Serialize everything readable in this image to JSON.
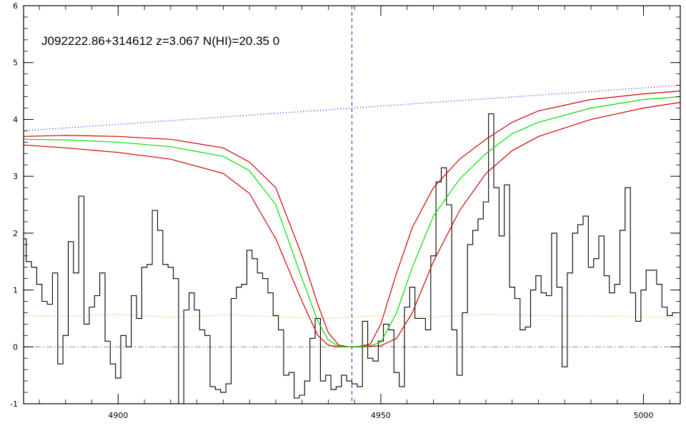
{
  "chart_data": {
    "type": "line",
    "title": "J092222.86+314612 z=3.067 N(HI)=20.35 0",
    "xlabel": "",
    "ylabel": "",
    "xlim": [
      4882,
      5007
    ],
    "ylim": [
      -1,
      6
    ],
    "x_ticks": [
      4900,
      4950,
      5000
    ],
    "y_ticks": [
      -1,
      0,
      1,
      2,
      3,
      4,
      5,
      6
    ],
    "grid": false,
    "legend": "none",
    "vertical_marker_x": 4944.5,
    "zero_level": 0,
    "colors": {
      "flux": "#000000",
      "model": "#00dd00",
      "model_bounds": "#cc0000",
      "continuum": "#3333ff",
      "error": "#ff8800",
      "marker": "#2222aa",
      "zero_line": "#888888"
    },
    "series": [
      {
        "kind": "flux_histogram",
        "x": [
          4882,
          4883,
          4884,
          4885,
          4886,
          4887,
          4888,
          4889,
          4890,
          4891,
          4892,
          4893,
          4894,
          4895,
          4896,
          4897,
          4898,
          4899,
          4900,
          4901,
          4902,
          4903,
          4904,
          4905,
          4906,
          4907,
          4908,
          4909,
          4910,
          4911,
          4912,
          4913,
          4914,
          4915,
          4916,
          4917,
          4918,
          4919,
          4920,
          4921,
          4922,
          4923,
          4924,
          4925,
          4926,
          4927,
          4928,
          4929,
          4930,
          4931,
          4932,
          4933,
          4934,
          4935,
          4936,
          4937,
          4938,
          4939,
          4940,
          4941,
          4942,
          4943,
          4944,
          4945,
          4946,
          4947,
          4948,
          4949,
          4950,
          4951,
          4952,
          4953,
          4954,
          4955,
          4956,
          4957,
          4958,
          4959,
          4960,
          4961,
          4962,
          4963,
          4964,
          4965,
          4966,
          4967,
          4968,
          4969,
          4970,
          4971,
          4972,
          4973,
          4974,
          4975,
          4976,
          4977,
          4978,
          4979,
          4980,
          4981,
          4982,
          4983,
          4984,
          4985,
          4986,
          4987,
          4988,
          4989,
          4990,
          4991,
          4992,
          4993,
          4994,
          4995,
          4996,
          4997,
          4998,
          4999,
          5000,
          5001,
          5002,
          5003,
          5004,
          5005,
          5006
        ],
        "values": [
          1.9,
          1.5,
          1.4,
          1.1,
          0.8,
          0.75,
          1.3,
          -0.3,
          0.2,
          1.85,
          1.3,
          2.65,
          0.4,
          0.7,
          0.9,
          1.3,
          0.1,
          -0.3,
          -0.55,
          0.2,
          0,
          0.9,
          0.5,
          1.4,
          1.45,
          2.4,
          2.05,
          1.45,
          1.4,
          1.2,
          -1.0,
          0.65,
          0.95,
          0.65,
          0.3,
          0.2,
          -0.7,
          -0.75,
          -0.8,
          -0.65,
          0.85,
          1.05,
          1.1,
          1.7,
          1.55,
          1.3,
          1.2,
          0.95,
          0.55,
          0.3,
          -0.5,
          -0.45,
          -0.9,
          -0.85,
          -0.6,
          0.15,
          0.5,
          -0.6,
          -0.5,
          -0.75,
          -0.7,
          -0.5,
          -0.6,
          -0.65,
          -0.7,
          0.45,
          -0.2,
          -0.25,
          0.1,
          0.4,
          0.3,
          -0.45,
          -0.7,
          0.7,
          1.05,
          0.5,
          0.5,
          0.3,
          1.6,
          2.9,
          3.15,
          2.5,
          0.3,
          -0.5,
          0.6,
          1.8,
          2.05,
          2.25,
          2.55,
          4.1,
          2.8,
          1.95,
          2.85,
          1.05,
          0.85,
          0.3,
          0.35,
          1.0,
          1.25,
          0.95,
          0.9,
          2.0,
          1.05,
          -0.35,
          1.3,
          2.0,
          2.15,
          2.3,
          1.4,
          1.55,
          1.95,
          1.25,
          0.95,
          1.1,
          2.05,
          2.8,
          0.95,
          0.45,
          1.0,
          1.35,
          1.35,
          1.1,
          0.7,
          0.55,
          0.6
        ]
      },
      {
        "kind": "continuum",
        "x": [
          4882,
          5007
        ],
        "values": [
          3.8,
          4.6
        ]
      },
      {
        "kind": "error",
        "x": [
          4882,
          4890,
          4900,
          4910,
          4920,
          4930,
          4940,
          4950,
          4960,
          4970,
          4980,
          4990,
          5000,
          5007
        ],
        "values": [
          0.55,
          0.54,
          0.57,
          0.52,
          0.56,
          0.53,
          0.5,
          0.55,
          0.53,
          0.57,
          0.55,
          0.54,
          0.53,
          0.52
        ]
      },
      {
        "kind": "model",
        "x": [
          4882,
          4890,
          4900,
          4910,
          4920,
          4925,
          4930,
          4935,
          4938,
          4940,
          4942,
          4944,
          4946,
          4948,
          4950,
          4953,
          4956,
          4960,
          4965,
          4970,
          4975,
          4980,
          4990,
          5000,
          5007
        ],
        "values": [
          3.65,
          3.64,
          3.6,
          3.52,
          3.35,
          3.1,
          2.5,
          1.2,
          0.45,
          0.12,
          0.01,
          0.0,
          0.01,
          0.02,
          0.08,
          0.6,
          1.4,
          2.3,
          2.95,
          3.4,
          3.75,
          3.95,
          4.2,
          4.35,
          4.4
        ]
      },
      {
        "kind": "model_upper",
        "x": [
          4882,
          4890,
          4900,
          4910,
          4920,
          4925,
          4930,
          4935,
          4938,
          4940,
          4942,
          4944,
          4946,
          4948,
          4950,
          4953,
          4956,
          4960,
          4965,
          4970,
          4975,
          4980,
          4990,
          5000,
          5007
        ],
        "values": [
          3.7,
          3.72,
          3.7,
          3.65,
          3.5,
          3.25,
          2.8,
          1.6,
          0.75,
          0.25,
          0.03,
          0.0,
          0.01,
          0.05,
          0.4,
          1.3,
          2.1,
          2.8,
          3.3,
          3.65,
          3.95,
          4.15,
          4.35,
          4.45,
          4.5
        ]
      },
      {
        "kind": "model_lower",
        "x": [
          4882,
          4890,
          4900,
          4910,
          4920,
          4925,
          4930,
          4935,
          4938,
          4940,
          4942,
          4944,
          4946,
          4948,
          4950,
          4953,
          4956,
          4960,
          4965,
          4970,
          4975,
          4980,
          4990,
          5000,
          5007
        ],
        "values": [
          3.55,
          3.5,
          3.42,
          3.3,
          3.05,
          2.7,
          1.9,
          0.8,
          0.2,
          0.03,
          0.0,
          0.0,
          0.0,
          0.01,
          0.02,
          0.15,
          0.6,
          1.5,
          2.4,
          3.05,
          3.45,
          3.7,
          4.0,
          4.2,
          4.3
        ]
      }
    ]
  }
}
